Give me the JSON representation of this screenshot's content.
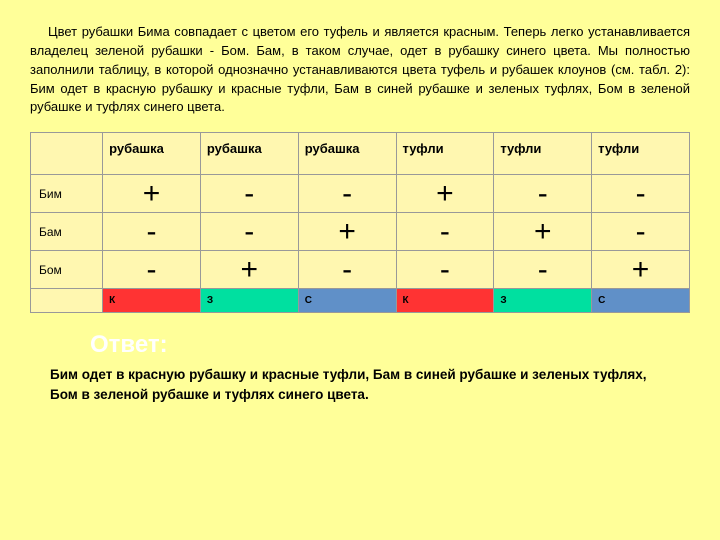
{
  "intro": "Цвет рубашки Бима совпадает с цветом его туфель и является красным. Теперь легко устанавливается владелец зеленой рубашки - Бом. Бам, в таком случае, одет в рубашку синего цвета. Мы полностью заполнили таблицу, в которой однозначно устанавливаются цвета туфель и рубашек клоунов (см. табл. 2): Бим одет в красную рубашку и красные туфли, Бам в синей рубашке и зеленых туфлях, Бом в зеленой рубашке и туфлях синего  цвета.",
  "table": {
    "headers": [
      "рубашка",
      "рубашка",
      "рубашка",
      "туфли",
      "туфли",
      "туфли"
    ],
    "rows": [
      {
        "name": "Бим",
        "vals": [
          "+",
          "-",
          "-",
          "+",
          "-",
          "-"
        ]
      },
      {
        "name": "Бам",
        "vals": [
          "-",
          "-",
          "+",
          "-",
          "+",
          "-"
        ]
      },
      {
        "name": "Бом",
        "vals": [
          "-",
          "+",
          "-",
          "-",
          "-",
          "+"
        ]
      }
    ],
    "color_row": {
      "cells": [
        {
          "label": "К",
          "class": "k"
        },
        {
          "label": "З",
          "class": "z"
        },
        {
          "label": "С",
          "class": "s"
        },
        {
          "label": "К",
          "class": "k"
        },
        {
          "label": "З",
          "class": "z"
        },
        {
          "label": "С",
          "class": "s"
        }
      ]
    }
  },
  "answer_label": "Ответ:",
  "answer_text": "Бим одет в красную рубашку и красные туфли, Бам в синей рубашке и зеленых туфлях, Бом в зеленой рубашке и туфлях синего цвета."
}
